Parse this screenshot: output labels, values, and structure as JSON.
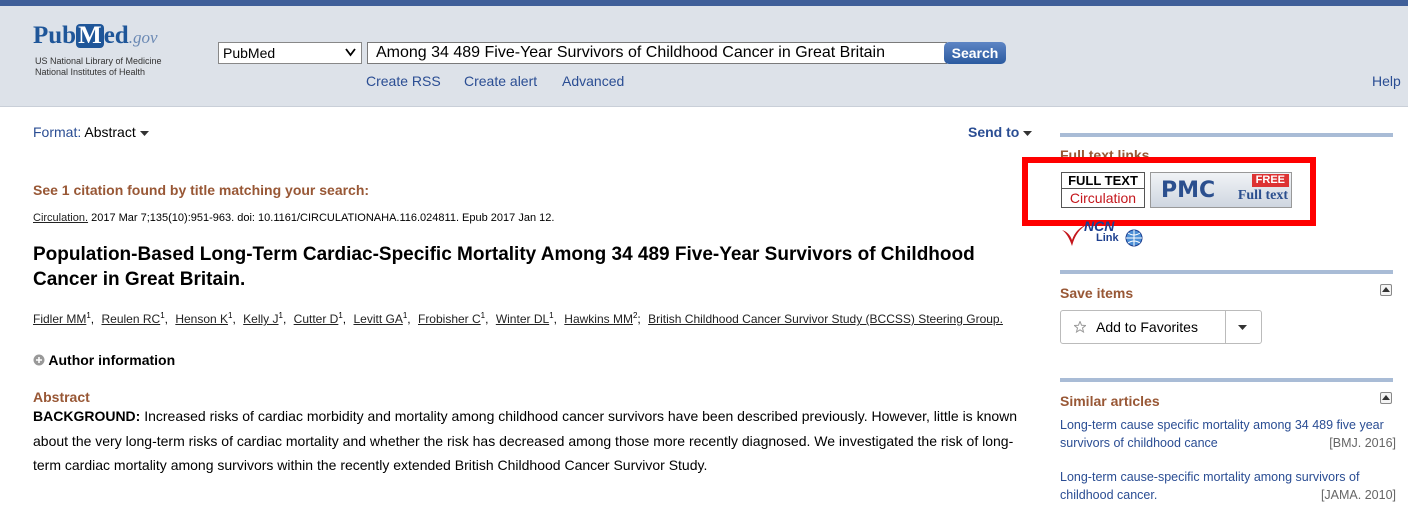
{
  "header": {
    "logo": [
      "Pub",
      "M",
      "ed",
      ".gov"
    ],
    "org_lines": [
      "US National Library of Medicine",
      "National Institutes of Health"
    ],
    "database": "PubMed",
    "query": "Among 34 489 Five-Year Survivors of Childhood Cancer in Great Britain",
    "search_button": "Search",
    "links": [
      "Create RSS",
      "Create alert",
      "Advanced"
    ],
    "help": "Help"
  },
  "toolbar": {
    "format_label": "Format:",
    "format_value": "Abstract",
    "send_to": "Send to"
  },
  "notice": "See 1 citation found by title matching your search:",
  "citation": {
    "journal": "Circulation.",
    "details": "2017 Mar 7;135(10):951-963. doi: 10.1161/CIRCULATIONAHA.116.024811. Epub 2017 Jan 12."
  },
  "title": "Population-Based Long-Term Cardiac-Specific Mortality Among 34 489 Five-Year Survivors of Childhood Cancer in Great Britain.",
  "authors": [
    {
      "name": "Fidler MM",
      "affiliation": "1",
      "punctuation": ","
    },
    {
      "name": "Reulen RC",
      "affiliation": "1",
      "punctuation": ","
    },
    {
      "name": "Henson K",
      "affiliation": "1",
      "punctuation": ","
    },
    {
      "name": "Kelly J",
      "affiliation": "1",
      "punctuation": ","
    },
    {
      "name": "Cutter D",
      "affiliation": "1",
      "punctuation": ","
    },
    {
      "name": "Levitt GA",
      "affiliation": "1",
      "punctuation": ","
    },
    {
      "name": "Frobisher C",
      "affiliation": "1",
      "punctuation": ","
    },
    {
      "name": "Winter DL",
      "affiliation": "1",
      "punctuation": ","
    },
    {
      "name": "Hawkins MM",
      "affiliation": "2",
      "punctuation": ";"
    }
  ],
  "author_group": "British Childhood Cancer Survivor Study (BCCSS) Steering Group.",
  "author_information": "Author information",
  "abstract": {
    "heading": "Abstract",
    "label": "BACKGROUND:",
    "text": "Increased risks of cardiac morbidity and mortality among childhood cancer survivors have been described previously. However, little is known about the very long-term risks of cardiac mortality and whether the risk has decreased among those more recently diagnosed. We investigated the risk of long-term cardiac mortality among survivors within the recently extended British Childhood Cancer Survivor Study."
  },
  "sidebar": {
    "full_text": {
      "heading": "Full text links",
      "publisher": [
        "FULL TEXT",
        "Circulation"
      ],
      "pmc": {
        "logo": "PMC",
        "badge": "FREE",
        "label": "Full text"
      },
      "ncn": [
        "NCN",
        "Link"
      ]
    },
    "save_items": {
      "heading": "Save items",
      "button": "Add to Favorites"
    },
    "similar": {
      "heading": "Similar articles",
      "items": [
        {
          "title": "Long-term cause specific mortality among 34 489 five year survivors of childhood cance",
          "source": "[BMJ. 2016]"
        },
        {
          "title": "Long-term cause-specific mortality among survivors of childhood cancer.",
          "source": "[JAMA. 2010]"
        }
      ]
    }
  }
}
